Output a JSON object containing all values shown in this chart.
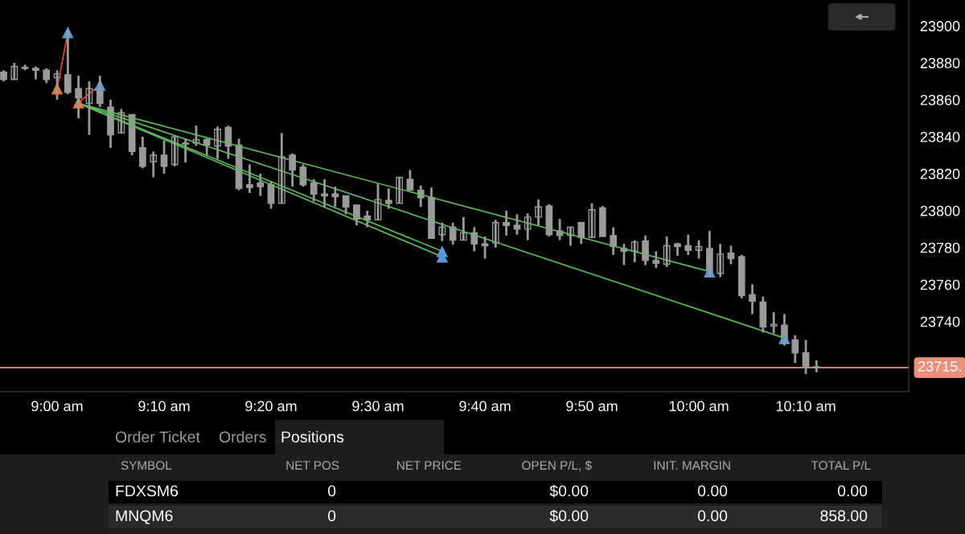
{
  "chart_data": [
    {
      "type": "candlestick",
      "x": [
        8.9167,
        8.9333,
        8.95,
        8.9667,
        8.9833,
        9,
        9.0167,
        9.0333,
        9.05,
        9.0667,
        9.0833,
        9.1,
        9.1167,
        9.1333,
        9.15,
        9.1667,
        9.1833,
        9.2,
        9.2167,
        9.2333,
        9.25,
        9.2667,
        9.2833,
        9.3,
        9.3167,
        9.3333,
        9.35,
        9.3667,
        9.3833,
        9.4,
        9.4167,
        9.4333,
        9.45,
        9.4667,
        9.4833,
        9.5,
        9.5167,
        9.5333,
        9.55,
        9.5667,
        9.5833,
        9.6,
        9.6167,
        9.6333,
        9.65,
        9.6667,
        9.6833,
        9.7,
        9.7167,
        9.7333,
        9.75,
        9.7667,
        9.7833,
        9.8,
        9.8167,
        9.8333,
        9.85,
        9.8667,
        9.8833,
        9.9,
        9.9167,
        9.9333,
        9.95,
        9.9667,
        9.9833,
        10,
        10.0167,
        10.0333,
        10.05,
        10.0667,
        10.0833,
        10.1,
        10.1167,
        10.1333,
        10.15,
        10.1667,
        10.1833
      ],
      "ohlc": [
        [
          23875,
          23876,
          23870,
          23871
        ],
        [
          23871,
          23880,
          23871,
          23878
        ],
        [
          23877,
          23879,
          23876,
          23877.5
        ],
        [
          23877,
          23878,
          23871,
          23876
        ],
        [
          23876,
          23877,
          23869,
          23871
        ],
        [
          23872,
          23876,
          23860,
          23874
        ],
        [
          23873.5,
          23897,
          23863,
          23864
        ],
        [
          23866,
          23873,
          23850,
          23861
        ],
        [
          23858,
          23870,
          23841,
          23866
        ],
        [
          23865,
          23873,
          23856,
          23858
        ],
        [
          23856,
          23860,
          23834,
          23841
        ],
        [
          23842,
          23855,
          23842,
          23853
        ],
        [
          23852,
          23852,
          23830,
          23832
        ],
        [
          23834,
          23840,
          23823,
          23824
        ],
        [
          23826.5,
          23832,
          23818,
          23830
        ],
        [
          23830,
          23838,
          23820,
          23824
        ],
        [
          23825,
          23840,
          23824,
          23840
        ],
        [
          23836,
          23839,
          23826,
          23836.5
        ],
        [
          23836.5,
          23846,
          23835,
          23838.5
        ],
        [
          23838.5,
          23839,
          23830,
          23835.5
        ],
        [
          23835,
          23845.5,
          23828,
          23844
        ],
        [
          23845,
          23846,
          23828,
          23835
        ],
        [
          23835.5,
          23839,
          23811,
          23812
        ],
        [
          23814,
          23825,
          23809.5,
          23812.5
        ],
        [
          23815,
          23820,
          23808,
          23813
        ],
        [
          23814,
          23816,
          23801,
          23804
        ],
        [
          23804,
          23842,
          23804,
          23829
        ],
        [
          23830,
          23831,
          23813,
          23822
        ],
        [
          23823.5,
          23825,
          23813,
          23814
        ],
        [
          23815,
          23817,
          23805,
          23809
        ],
        [
          23809,
          23817,
          23802,
          23808
        ],
        [
          23809,
          23813,
          23802,
          23807.5
        ],
        [
          23808,
          23808,
          23798,
          23802
        ],
        [
          23803,
          23803,
          23792,
          23795.5
        ],
        [
          23797,
          23800,
          23791,
          23795
        ],
        [
          23795,
          23814.5,
          23795,
          23806
        ],
        [
          23805.5,
          23812,
          23801,
          23804
        ],
        [
          23804,
          23818,
          23804,
          23818
        ],
        [
          23817,
          23822,
          23811,
          23811
        ],
        [
          23811,
          23813.5,
          23802,
          23807
        ],
        [
          23807,
          23812.5,
          23785,
          23785
        ],
        [
          23787,
          23793.5,
          23783.5,
          23791
        ],
        [
          23791,
          23793.5,
          23781.5,
          23784
        ],
        [
          23784,
          23796.5,
          23784,
          23788
        ],
        [
          23788,
          23791,
          23778,
          23782
        ],
        [
          23782,
          23786,
          23774,
          23781
        ],
        [
          23782.5,
          23795,
          23780,
          23793.5
        ],
        [
          23793.5,
          23800,
          23786.5,
          23792
        ],
        [
          23792,
          23798,
          23787,
          23790
        ],
        [
          23790,
          23798.5,
          23784,
          23796.5
        ],
        [
          23796.5,
          23806,
          23792,
          23802
        ],
        [
          23802.5,
          23803.5,
          23786,
          23787
        ],
        [
          23789,
          23795.5,
          23784,
          23786.5
        ],
        [
          23786.5,
          23791,
          23781,
          23791
        ],
        [
          23793.5,
          23793.5,
          23782,
          23785.5
        ],
        [
          23785.5,
          23804,
          23785.5,
          23800.5
        ],
        [
          23801.5,
          23802.5,
          23786,
          23786
        ],
        [
          23786.5,
          23791,
          23776,
          23780.5
        ],
        [
          23779.5,
          23782,
          23770.5,
          23778
        ],
        [
          23778,
          23784,
          23772,
          23783
        ],
        [
          23783.5,
          23786.5,
          23770.5,
          23773
        ],
        [
          23773,
          23778,
          23769,
          23771.5
        ],
        [
          23771,
          23786,
          23769.5,
          23781
        ],
        [
          23782,
          23782.5,
          23775.5,
          23780.5
        ],
        [
          23781,
          23787,
          23776,
          23778.5
        ],
        [
          23778.5,
          23784,
          23774,
          23780.5
        ],
        [
          23779.5,
          23789,
          23764,
          23765
        ],
        [
          23766,
          23782,
          23764,
          23776.5
        ],
        [
          23777,
          23781,
          23771,
          23774
        ],
        [
          23775,
          23776,
          23752.5,
          23754
        ],
        [
          23754.5,
          23760,
          23744,
          23751
        ],
        [
          23750.5,
          23753.5,
          23734,
          23737
        ],
        [
          23737.5,
          23745,
          23733.5,
          23738.5
        ],
        [
          23738,
          23744,
          23727,
          23728
        ],
        [
          23730,
          23732.5,
          23717.5,
          23723
        ],
        [
          23723,
          23730,
          23711.5,
          23715
        ],
        [
          23715.5,
          23719,
          23712.5,
          23715
        ]
      ],
      "series": [
        {
          "type": "line",
          "color": "#e0433c",
          "x": [
            9,
            9.0167
          ],
          "values": [
            23866,
            23896.5
          ]
        },
        {
          "type": "line",
          "color": "#e0433c",
          "x": [
            9.0333,
            9.0667
          ],
          "values": [
            23858.5,
            23868
          ]
        },
        {
          "type": "line",
          "color": "#5cb85c",
          "x": [
            9.0333,
            9.6
          ],
          "values": [
            23858,
            23778
          ]
        },
        {
          "type": "line",
          "color": "#5cb85c",
          "x": [
            9.0333,
            9.6
          ],
          "values": [
            23858,
            23775
          ]
        },
        {
          "type": "line",
          "color": "#5cb85c",
          "x": [
            9.0333,
            10.0167
          ],
          "values": [
            23858,
            23767
          ]
        },
        {
          "type": "line",
          "color": "#5cb85c",
          "x": [
            9.0333,
            10.1333
          ],
          "values": [
            23858,
            23731
          ]
        },
        {
          "type": "scatter",
          "marker": "triangle",
          "color": "#5b9bd5",
          "x": [
            9.0167,
            9.0667,
            9.6,
            9.6,
            10.0167,
            10.1333
          ],
          "values": [
            23896.5,
            23868,
            23778,
            23775,
            23767,
            23731
          ]
        },
        {
          "type": "scatter",
          "marker": "triangle",
          "color": "#e8772e",
          "x": [
            9,
            9.0333
          ],
          "values": [
            23866,
            23858.5
          ]
        }
      ],
      "ref_lines": [
        {
          "axis": "y",
          "value": 23715,
          "label": "23715.",
          "color": "#e8907a"
        }
      ],
      "xlim": [
        8.911,
        10.327
      ],
      "ylim": [
        23702,
        23914
      ],
      "xticks": [
        {
          "value": 9,
          "label": "9:00 am"
        },
        {
          "value": 9.1667,
          "label": "9:10 am"
        },
        {
          "value": 9.3333,
          "label": "9:20 am"
        },
        {
          "value": 9.5,
          "label": "9:30 am"
        },
        {
          "value": 9.6667,
          "label": "9:40 am"
        },
        {
          "value": 9.8333,
          "label": "9:50 am"
        },
        {
          "value": 10,
          "label": "10:00 am"
        },
        {
          "value": 10.1667,
          "label": "10:10 am"
        }
      ],
      "yticks": [
        23740,
        23760,
        23780,
        23800,
        23820,
        23840,
        23860,
        23880,
        23900
      ],
      "color": "#9a9a9a",
      "grid": false,
      "legend": false
    },
    {
      "type": "other",
      "annotations": [
        "Order Ticket",
        "Orders",
        "Positions",
        "SYMBOL",
        "NET POS",
        "NET PRICE",
        "OPEN P/L, $",
        "INIT. MARGIN",
        "TOTAL P/L",
        "FDXSM6",
        "0",
        "$0.00",
        "0.00",
        "0.00",
        "MNQM6",
        "0",
        "$0.00",
        "0.00",
        "858.00"
      ]
    }
  ]
}
